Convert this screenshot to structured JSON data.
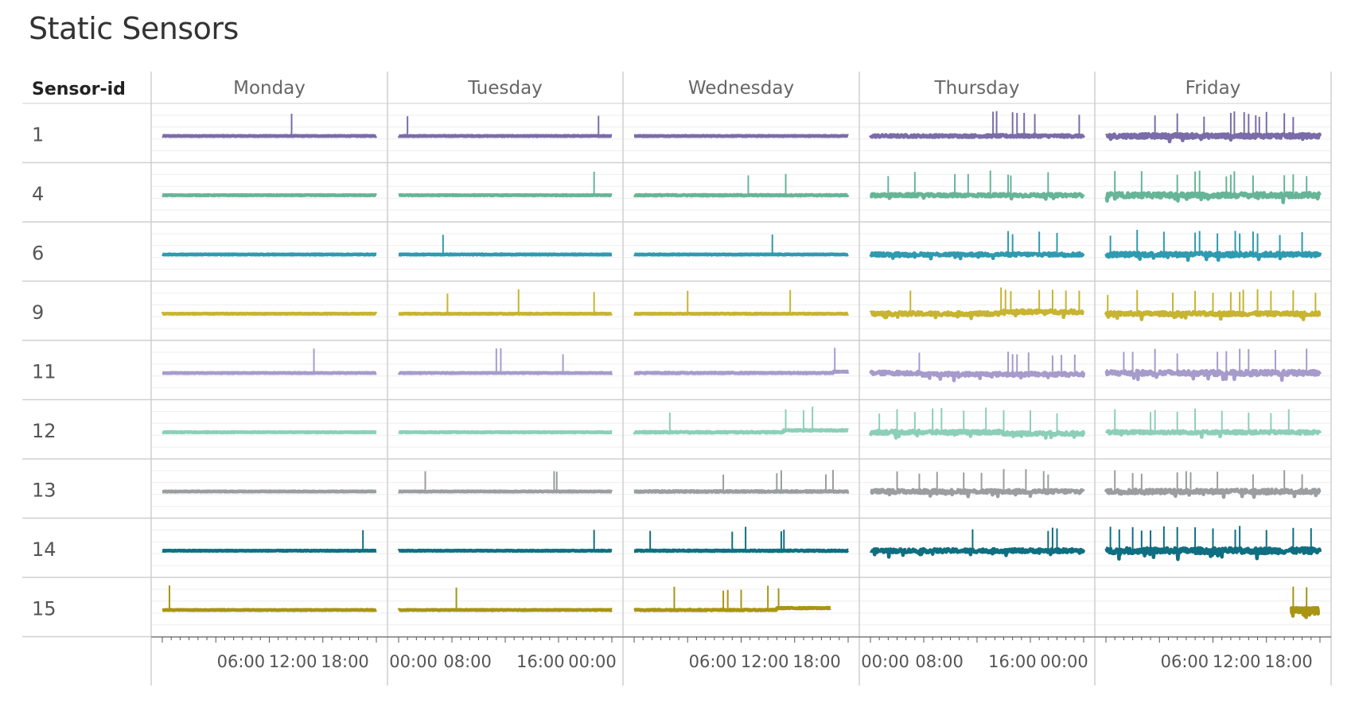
{
  "page": {
    "title": "Static Sensors"
  },
  "chart_data": {
    "type": "line",
    "title": "Static Sensors",
    "row_header": "Sensor-id",
    "days": [
      "Monday",
      "Tuesday",
      "Wednesday",
      "Thursday",
      "Friday"
    ],
    "x_ticks": [
      [
        "06:00",
        "12:00",
        "18:00"
      ],
      [
        "00:00",
        "08:00",
        "16:00",
        "00:00"
      ],
      [
        "06:00",
        "12:00",
        "18:00"
      ],
      [
        "00:00",
        "08:00",
        "16:00",
        "00:00"
      ],
      [
        "06:00",
        "12:00",
        "18:00"
      ]
    ],
    "x_range_hours": [
      0,
      24
    ],
    "grid": true,
    "series": [
      {
        "sensor_id": "1",
        "color": "#7a6ca8",
        "noise": [
          0.05,
          0.05,
          0.05,
          0.2,
          0.35
        ],
        "spike_hours": [
          [
            14.5
          ],
          [
            1.0,
            22.5
          ],
          [],
          [
            13.8,
            14.2,
            16.0,
            16.5,
            17.3,
            18.5,
            23.5
          ],
          [
            5.5,
            8.0,
            11.0,
            14.0,
            14.4,
            15.5,
            16.0,
            16.8,
            17.2,
            18.0,
            20.0,
            21.0
          ]
        ],
        "spike_value": 1.0,
        "level_shift": [
          null,
          null,
          null,
          null,
          null
        ],
        "active_range": [
          [
            0,
            24
          ],
          [
            0,
            24
          ],
          [
            0,
            24
          ],
          [
            0,
            24
          ],
          [
            0,
            24
          ]
        ]
      },
      {
        "sensor_id": "4",
        "color": "#66b596",
        "noise": [
          0.05,
          0.05,
          0.08,
          0.25,
          0.4
        ],
        "spike_hours": [
          [],
          [
            22.0
          ],
          [
            12.8,
            17.0
          ],
          [
            2.0,
            5.0,
            9.5,
            11.0,
            13.5,
            15.5,
            15.8,
            20.0
          ],
          [
            1.0,
            4.0,
            8.0,
            10.0,
            10.5,
            13.5,
            14.0,
            14.4,
            16.5,
            20.0,
            21.0,
            22.5
          ]
        ],
        "spike_value": 1.0,
        "level_shift": [
          null,
          null,
          null,
          null,
          null
        ],
        "active_range": [
          [
            0,
            24
          ],
          [
            0,
            24
          ],
          [
            0,
            24
          ],
          [
            0,
            24
          ],
          [
            0,
            24
          ]
        ]
      },
      {
        "sensor_id": "6",
        "color": "#2f9ab0",
        "noise": [
          0.05,
          0.05,
          0.05,
          0.25,
          0.35
        ],
        "spike_hours": [
          [],
          [
            5.0
          ],
          [
            15.5
          ],
          [
            15.5,
            16.0,
            19.0,
            21.0
          ],
          [
            0.5,
            3.5,
            6.5,
            10.0,
            10.5,
            12.5,
            14.5,
            15.0,
            16.5,
            17.0,
            19.5,
            22.0
          ]
        ],
        "spike_value": 1.0,
        "level_shift": [
          null,
          null,
          null,
          null,
          null
        ],
        "active_range": [
          [
            0,
            24
          ],
          [
            0,
            24
          ],
          [
            0,
            24
          ],
          [
            0,
            24
          ],
          [
            0,
            24
          ]
        ]
      },
      {
        "sensor_id": "9",
        "color": "#c7b430",
        "noise": [
          0.05,
          0.05,
          0.05,
          0.3,
          0.3
        ],
        "spike_hours": [
          [],
          [
            5.5,
            13.5,
            22.0
          ],
          [
            6.0,
            17.5
          ],
          [
            4.5,
            14.7,
            15.2,
            15.8,
            19.0,
            20.5,
            22.0,
            23.5
          ],
          [
            0.2,
            3.5,
            7.5,
            10.0,
            12.0,
            14.0,
            15.0,
            15.4,
            17.0,
            18.5,
            21.0,
            23.5
          ]
        ],
        "spike_value": 1.0,
        "level_shift": [
          null,
          null,
          null,
          [
            14.5,
            0.15
          ],
          null
        ],
        "active_range": [
          [
            0,
            24
          ],
          [
            0,
            24
          ],
          [
            0,
            24
          ],
          [
            0,
            24
          ],
          [
            0,
            24
          ]
        ]
      },
      {
        "sensor_id": "11",
        "color": "#a79bcc",
        "noise": [
          0.05,
          0.05,
          0.08,
          0.3,
          0.4
        ],
        "spike_hours": [
          [
            17.0
          ],
          [
            11.0,
            11.5,
            18.5
          ],
          [
            22.5
          ],
          [
            5.5,
            15.5,
            16.0,
            16.5,
            17.8,
            20.5,
            21.5,
            23.0
          ],
          [
            2.0,
            3.0,
            5.5,
            8.0,
            12.5,
            13.5,
            15.0,
            16.0,
            19.0,
            22.5
          ]
        ],
        "spike_value": 1.0,
        "level_shift": [
          null,
          null,
          [
            22.3,
            0.1
          ],
          [
            5.5,
            -0.1
          ],
          null
        ],
        "active_range": [
          [
            0,
            24
          ],
          [
            0,
            24
          ],
          [
            0,
            24
          ],
          [
            0,
            24
          ],
          [
            0,
            24
          ]
        ]
      },
      {
        "sensor_id": "12",
        "color": "#8ccfb9",
        "noise": [
          0.05,
          0.05,
          0.1,
          0.3,
          0.25
        ],
        "spike_hours": [
          [],
          [],
          [
            4.0,
            17.0,
            19.0,
            20.0
          ],
          [
            1.0,
            3.0,
            5.0,
            7.0,
            8.0,
            10.5,
            13.0,
            15.0,
            18.0,
            21.0
          ],
          [
            1.0,
            5.0,
            5.5,
            8.0,
            10.0,
            13.0,
            16.0,
            18.5,
            20.5
          ]
        ],
        "spike_value": 1.0,
        "level_shift": [
          null,
          null,
          [
            16.8,
            0.15
          ],
          [
            15.0,
            -0.1
          ],
          null
        ],
        "active_range": [
          [
            0,
            24
          ],
          [
            0,
            24
          ],
          [
            0,
            24
          ],
          [
            0,
            24
          ],
          [
            0,
            24
          ]
        ]
      },
      {
        "sensor_id": "13",
        "color": "#9a9e9e",
        "noise": [
          0.05,
          0.05,
          0.1,
          0.3,
          0.35
        ],
        "spike_hours": [
          [],
          [
            3.0,
            17.5,
            17.8
          ],
          [
            10.0,
            16.0,
            16.5,
            21.5,
            22.3
          ],
          [
            3.0,
            5.5,
            7.5,
            10.5,
            12.5,
            15.0,
            17.5,
            19.5,
            20.0
          ],
          [
            1.0,
            3.0,
            4.0,
            8.0,
            9.0,
            9.5,
            12.5,
            16.5,
            20.0,
            22.0
          ]
        ],
        "spike_value": 0.9,
        "level_shift": [
          null,
          null,
          null,
          null,
          null
        ],
        "active_range": [
          [
            0,
            24
          ],
          [
            0,
            24
          ],
          [
            0,
            24
          ],
          [
            0,
            24
          ],
          [
            0,
            24
          ]
        ]
      },
      {
        "sensor_id": "14",
        "color": "#0f6f80",
        "noise": [
          0.05,
          0.05,
          0.08,
          0.3,
          0.45
        ],
        "spike_hours": [
          [
            22.5
          ],
          [
            22.0
          ],
          [
            1.8,
            11.0,
            12.5,
            16.5,
            16.8
          ],
          [
            11.5,
            20.0,
            20.5,
            21.0
          ],
          [
            0.5,
            1.5,
            3.0,
            4.0,
            5.0,
            6.5,
            8.0,
            10.0,
            12.0,
            14.5,
            15.0,
            18.0,
            21.0,
            23.0
          ]
        ],
        "spike_value": 1.0,
        "level_shift": [
          null,
          null,
          null,
          null,
          null
        ],
        "active_range": [
          [
            0,
            24
          ],
          [
            0,
            24
          ],
          [
            0,
            24
          ],
          [
            0,
            24
          ],
          [
            0,
            24
          ]
        ]
      },
      {
        "sensor_id": "15",
        "color": "#a89514",
        "noise": [
          0.05,
          0.05,
          0.08,
          0,
          0.35
        ],
        "spike_hours": [
          [
            0.8
          ],
          [
            6.5
          ],
          [
            4.5,
            10.0,
            10.5,
            12.0,
            15.0,
            16.2
          ],
          [],
          [
            21.0,
            22.5
          ]
        ],
        "spike_value": 1.0,
        "level_shift": [
          null,
          null,
          [
            16.0,
            0.15
          ],
          null,
          null
        ],
        "active_range": [
          [
            0,
            24
          ],
          [
            0,
            24
          ],
          [
            0,
            22
          ],
          null,
          [
            20.8,
            23.8
          ]
        ]
      }
    ]
  }
}
